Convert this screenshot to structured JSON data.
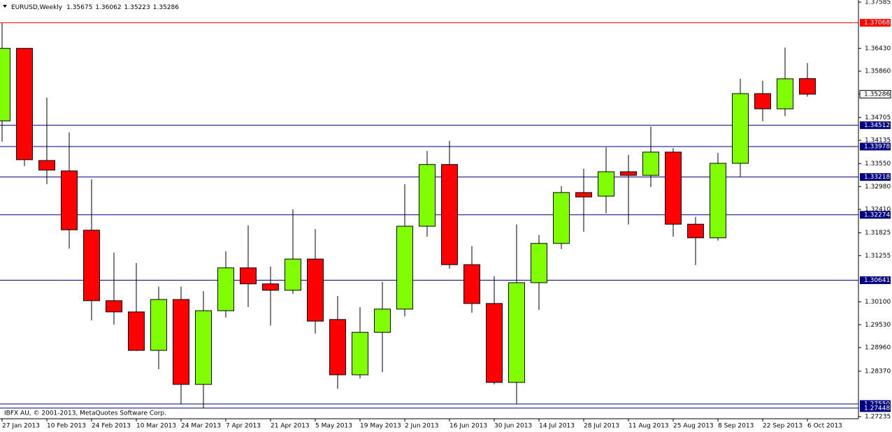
{
  "chart_data": {
    "type": "candlestick",
    "title": "EURUSD,Weekly",
    "header_values": [
      1.35675,
      1.36062,
      1.35223,
      1.35286
    ],
    "credits": "IBFX AU, © 2001-2013, MetaQuotes Software Corp.",
    "up_color": "#80ff00",
    "down_color": "#ff0000",
    "categories": [
      "27 Jan 2013",
      null,
      "10 Feb 2013",
      null,
      "24 Feb 2013",
      null,
      "10 Mar 2013",
      null,
      "24 Mar 2013",
      null,
      "7 Apr 2013",
      null,
      "21 Apr 2013",
      null,
      "5 May 2013",
      null,
      "19 May 2013",
      null,
      "2 Jun 2013",
      null,
      "16 Jun 2013",
      null,
      "30 Jun 2013",
      null,
      "14 Jul 2013",
      null,
      "28 Jul 2013",
      null,
      "11 Aug 2013",
      null,
      "25 Aug 2013",
      null,
      "8 Sep 2013",
      null,
      "22 Sep 2013",
      null,
      "6 Oct 2013"
    ],
    "open": [
      1.3462,
      1.3643,
      1.3363,
      1.3337,
      1.3189,
      1.3013,
      1.2985,
      1.2889,
      1.3016,
      1.2804,
      1.2988,
      1.3095,
      1.3055,
      1.3039,
      1.3117,
      1.2966,
      1.2828,
      1.2934,
      1.2992,
      1.3199,
      1.3353,
      1.3103,
      1.3006,
      1.2809,
      1.3058,
      1.3156,
      1.3283,
      1.3274,
      1.3335,
      1.3326,
      1.3384,
      1.3204,
      1.317,
      1.3356,
      1.353,
      1.3492,
      1.35675
    ],
    "high": [
      1.3706,
      1.3643,
      1.352,
      1.3433,
      1.3316,
      1.3133,
      1.3107,
      1.3048,
      1.3048,
      1.3037,
      1.3136,
      1.3201,
      1.3098,
      1.3241,
      1.3192,
      1.3025,
      1.2997,
      1.306,
      1.3304,
      1.3387,
      1.3412,
      1.3149,
      1.3074,
      1.3203,
      1.3177,
      1.3299,
      1.3342,
      1.3396,
      1.3377,
      1.3448,
      1.3394,
      1.3222,
      1.3382,
      1.3567,
      1.3562,
      1.3645,
      1.36062
    ],
    "low": [
      1.341,
      1.3349,
      1.3304,
      1.3143,
      1.2964,
      1.2953,
      1.2887,
      1.2842,
      1.2755,
      1.2745,
      1.2971,
      1.2997,
      1.2951,
      1.303,
      1.2931,
      1.2793,
      1.2819,
      1.2835,
      1.2974,
      1.3173,
      1.3093,
      1.2983,
      1.2804,
      1.2755,
      1.299,
      1.3142,
      1.3185,
      1.3231,
      1.3203,
      1.3297,
      1.3173,
      1.3102,
      1.3163,
      1.3323,
      1.3461,
      1.3474,
      1.35223
    ],
    "close": [
      1.3643,
      1.3365,
      1.3339,
      1.319,
      1.3013,
      1.2985,
      1.2889,
      1.3016,
      1.2804,
      1.2988,
      1.3095,
      1.3055,
      1.3039,
      1.3117,
      1.2962,
      1.2828,
      1.2934,
      1.2992,
      1.3199,
      1.3353,
      1.3103,
      1.3006,
      1.2809,
      1.3058,
      1.3156,
      1.3283,
      1.3272,
      1.3335,
      1.3326,
      1.3384,
      1.3204,
      1.317,
      1.3356,
      1.353,
      1.3492,
      1.3567,
      1.35286
    ],
    "ylim": [
      1.27235,
      1.37585
    ],
    "yticks": [
      1.37585,
      {
        "value": 1.3643,
        "label": "1.36430"
      },
      {
        "value": 1.3586,
        "label": "1.35860"
      },
      1.34705,
      1.34135,
      {
        "value": 1.3355,
        "label": "1.33550"
      },
      {
        "value": 1.3298,
        "label": "1.32980"
      },
      {
        "value": 1.3241,
        "label": "1.32410"
      },
      1.31825,
      1.31255,
      {
        "value": 1.301,
        "label": "1.30100"
      },
      {
        "value": 1.2953,
        "label": "1.29530"
      },
      {
        "value": 1.2896,
        "label": "1.28960"
      },
      {
        "value": 1.2837,
        "label": "1.28370"
      },
      1.27235
    ],
    "levels": [
      {
        "value": 1.37068,
        "color": "#ff0000"
      },
      {
        "value": 1.34512,
        "color": "#000080"
      },
      {
        "value": 1.33978,
        "color": "#000080"
      },
      {
        "value": 1.33218,
        "color": "#000080"
      },
      {
        "value": 1.32274,
        "color": "#000080"
      },
      {
        "value": 1.30641,
        "color": "#000080"
      },
      {
        "value": {
          "value": 1.2755,
          "label": "1.27550"
        },
        "color": "#000080"
      },
      {
        "value": 1.27448,
        "color": "#000080"
      }
    ],
    "current_price": 1.35286
  }
}
